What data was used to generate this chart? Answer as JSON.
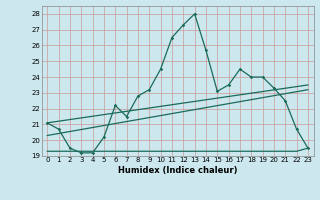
{
  "xlabel": "Humidex (Indice chaleur)",
  "background_color": "#cce8ee",
  "grid_color": "#cc9999",
  "line_color": "#1a6b5a",
  "xlim": [
    -0.5,
    23.5
  ],
  "ylim": [
    19,
    28.5
  ],
  "yticks": [
    19,
    20,
    21,
    22,
    23,
    24,
    25,
    26,
    27,
    28
  ],
  "xticks": [
    0,
    1,
    2,
    3,
    4,
    5,
    6,
    7,
    8,
    9,
    10,
    11,
    12,
    13,
    14,
    15,
    16,
    17,
    18,
    19,
    20,
    21,
    22,
    23
  ],
  "series1_x": [
    0,
    1,
    2,
    3,
    4,
    5,
    6,
    7,
    8,
    9,
    10,
    11,
    12,
    13,
    14,
    15,
    16,
    17,
    18,
    19,
    20,
    21,
    22,
    23
  ],
  "series1_y": [
    21.1,
    20.7,
    19.5,
    19.2,
    19.2,
    20.2,
    22.2,
    21.5,
    22.8,
    23.2,
    24.5,
    26.5,
    27.3,
    28.0,
    25.7,
    23.1,
    23.5,
    24.5,
    24.0,
    24.0,
    23.3,
    22.5,
    20.7,
    19.5
  ],
  "series2_x": [
    0,
    1,
    2,
    3,
    4,
    5,
    6,
    7,
    8,
    9,
    10,
    11,
    12,
    13,
    14,
    15,
    16,
    17,
    18,
    19,
    20,
    21,
    22,
    23
  ],
  "series2_y": [
    19.3,
    19.3,
    19.3,
    19.3,
    19.3,
    19.3,
    19.3,
    19.3,
    19.3,
    19.3,
    19.3,
    19.3,
    19.3,
    19.3,
    19.3,
    19.3,
    19.3,
    19.3,
    19.3,
    19.3,
    19.3,
    19.3,
    19.3,
    19.5
  ],
  "series3_x": [
    0,
    23
  ],
  "series3_y": [
    20.3,
    23.2
  ],
  "series4_x": [
    0,
    23
  ],
  "series4_y": [
    21.1,
    23.5
  ]
}
